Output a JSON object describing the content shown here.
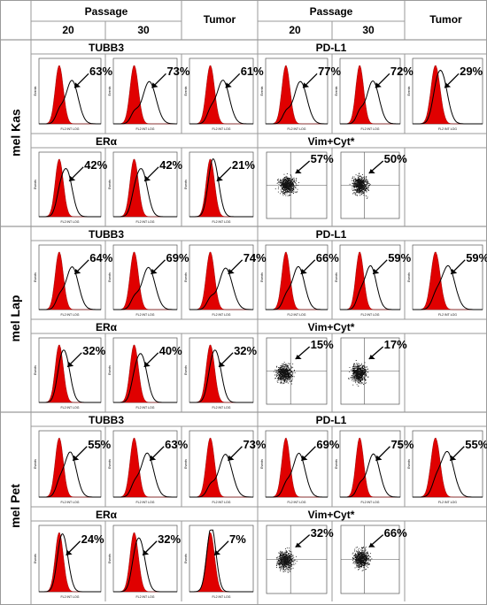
{
  "header": {
    "passage_left": "Passage",
    "tumor_left": "Tumor",
    "passage_right": "Passage",
    "tumor_right": "Tumor",
    "p20_left": "20",
    "p30_left": "30",
    "p20_right": "20",
    "p30_right": "30"
  },
  "axis_text": {
    "x": "FL2 INT LOG",
    "y": "Events"
  },
  "colors": {
    "fill": "#e00000",
    "line": "#000000",
    "grid": "#9a9a9a"
  },
  "groups": [
    {
      "name": "mel Kas",
      "left_top_marker": "TUBB3",
      "right_top_marker": "PD-L1",
      "left_bottom_marker": "ERα",
      "right_bottom_marker": "Vim+Cyt*",
      "tubb3": [
        "63%",
        "73%",
        "61%"
      ],
      "pdl1": [
        "77%",
        "72%",
        "29%"
      ],
      "era": [
        "42%",
        "42%",
        "21%"
      ],
      "vim": [
        "57%",
        "50%"
      ]
    },
    {
      "name": "mel Lap",
      "left_top_marker": "TUBB3",
      "right_top_marker": "PD-L1",
      "left_bottom_marker": "ERα",
      "right_bottom_marker": "Vim+Cyt*",
      "tubb3": [
        "64%",
        "69%",
        "74%"
      ],
      "pdl1": [
        "66%",
        "59%",
        "59%"
      ],
      "era": [
        "32%",
        "40%",
        "32%"
      ],
      "vim": [
        "15%",
        "17%"
      ]
    },
    {
      "name": "mel Pet",
      "left_top_marker": "TUBB3",
      "right_top_marker": "PD-L1",
      "left_bottom_marker": "ERα",
      "right_bottom_marker": "Vim+Cyt*",
      "tubb3": [
        "55%",
        "63%",
        "73%"
      ],
      "pdl1": [
        "69%",
        "75%",
        "55%"
      ],
      "era": [
        "24%",
        "32%",
        "7%"
      ],
      "vim": [
        "32%",
        "66%"
      ]
    }
  ]
}
